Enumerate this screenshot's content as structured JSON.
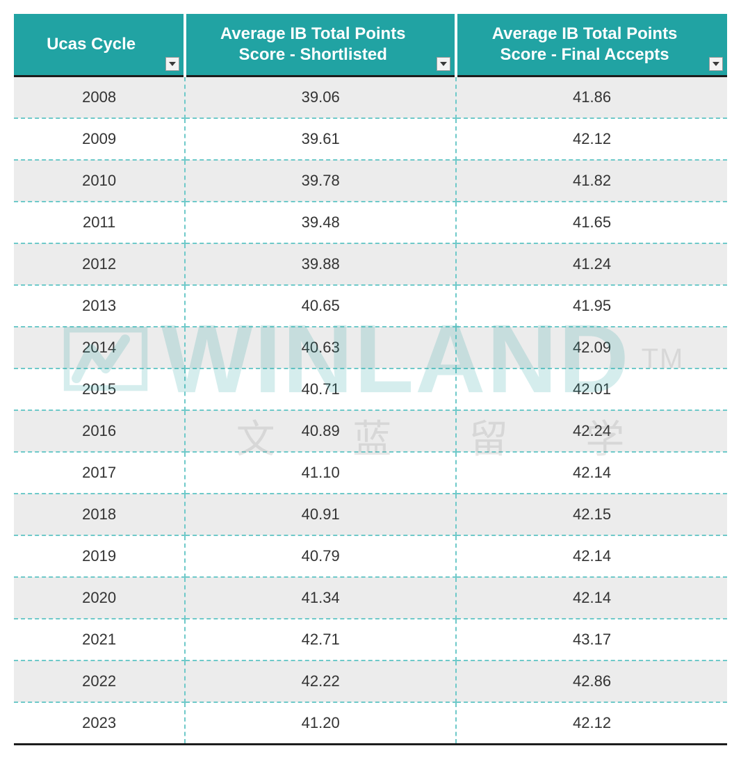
{
  "table": {
    "type": "table",
    "header_bg": "#21a3a3",
    "header_text_color": "#ffffff",
    "header_fontsize": 24,
    "header_fontweight": 700,
    "row_odd_bg": "#ececec",
    "row_even_bg": "#ffffff",
    "cell_fontsize": 22,
    "cell_text_color": "#333333",
    "border_dash_color": "#6ec9c9",
    "top_bottom_border_color": "#1c1c1c",
    "column_widths_pct": [
      24,
      38,
      38
    ],
    "columns": [
      "Ucas Cycle",
      "Average IB Total Points Score - Shortlisted",
      "Average IB Total Points Score - Final Accepts"
    ],
    "rows": [
      [
        "2008",
        "39.06",
        "41.86"
      ],
      [
        "2009",
        "39.61",
        "42.12"
      ],
      [
        "2010",
        "39.78",
        "41.82"
      ],
      [
        "2011",
        "39.48",
        "41.65"
      ],
      [
        "2012",
        "39.88",
        "41.24"
      ],
      [
        "2013",
        "40.65",
        "41.95"
      ],
      [
        "2014",
        "40.63",
        "42.09"
      ],
      [
        "2015",
        "40.71",
        "42.01"
      ],
      [
        "2016",
        "40.89",
        "42.24"
      ],
      [
        "2017",
        "41.10",
        "42.14"
      ],
      [
        "2018",
        "40.91",
        "42.15"
      ],
      [
        "2019",
        "40.79",
        "42.14"
      ],
      [
        "2020",
        "41.34",
        "42.14"
      ],
      [
        "2021",
        "42.71",
        "43.17"
      ],
      [
        "2022",
        "42.22",
        "42.86"
      ],
      [
        "2023",
        "41.20",
        "42.12"
      ]
    ]
  },
  "filter_icon": {
    "bg": "#f3f3f3",
    "border": "#9c9c9c",
    "arrow_color": "#3a3a3a"
  },
  "watermark": {
    "main": "WINLAND",
    "tm": "TM",
    "sub": "文 蓝 留 学",
    "color_main": "#1f9e9e",
    "color_sub": "#7a7a7a",
    "opacity": 0.18
  }
}
